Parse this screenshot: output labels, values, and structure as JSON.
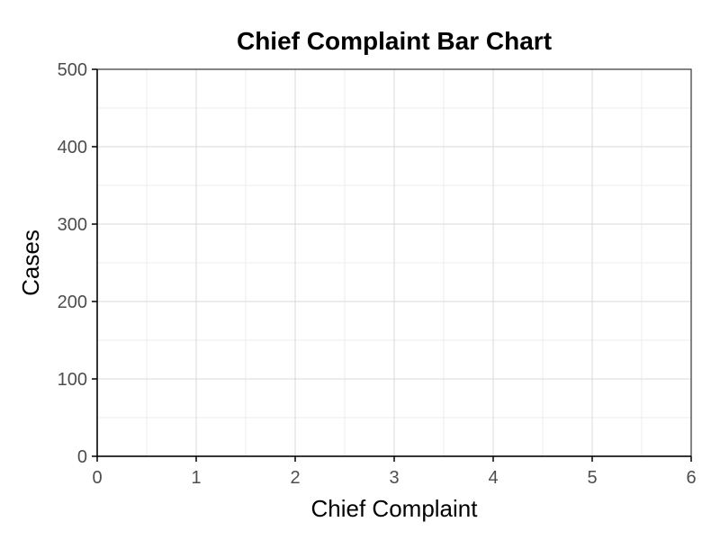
{
  "chart_data": {
    "type": "bar",
    "title": "Chief Complaint Bar Chart",
    "xlabel": "Chief Complaint",
    "ylabel": "Cases",
    "xlim": [
      0,
      6
    ],
    "ylim": [
      0,
      500
    ],
    "x_ticks": [
      "0",
      "1",
      "2",
      "3",
      "4",
      "5",
      "6"
    ],
    "y_ticks": [
      "0",
      "100",
      "200",
      "300",
      "400",
      "500"
    ],
    "x_tick_values": [
      0,
      1,
      2,
      3,
      4,
      5,
      6
    ],
    "y_tick_values": [
      0,
      100,
      200,
      300,
      400,
      500
    ],
    "categories": [],
    "values": [],
    "grid": true,
    "legend": "none"
  }
}
